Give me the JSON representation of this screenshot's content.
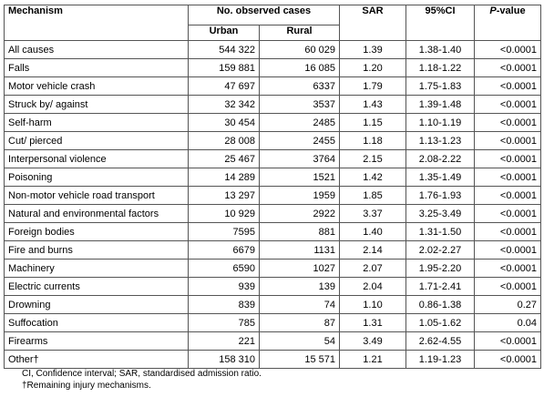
{
  "header": {
    "mechanism": "Mechanism",
    "observed": "No. observed cases",
    "urban": "Urban",
    "rural": "Rural",
    "sar": "SAR",
    "ci": "95%CI",
    "p_italic": "P",
    "p_rest": "-value"
  },
  "table": {
    "rows": [
      {
        "mechanism": "All causes",
        "urban": "544 322",
        "rural": "60 029",
        "sar": "1.39",
        "ci": "1.38-1.40",
        "p": "<0.0001"
      },
      {
        "mechanism": "Falls",
        "urban": "159 881",
        "rural": "16 085",
        "sar": "1.20",
        "ci": "1.18-1.22",
        "p": "<0.0001"
      },
      {
        "mechanism": "Motor vehicle crash",
        "urban": "47 697",
        "rural": "6337",
        "sar": "1.79",
        "ci": "1.75-1.83",
        "p": "<0.0001"
      },
      {
        "mechanism": "Struck by/ against",
        "urban": "32 342",
        "rural": "3537",
        "sar": "1.43",
        "ci": "1.39-1.48",
        "p": "<0.0001"
      },
      {
        "mechanism": "Self-harm",
        "urban": "30 454",
        "rural": "2485",
        "sar": "1.15",
        "ci": "1.10-1.19",
        "p": "<0.0001"
      },
      {
        "mechanism": "Cut/ pierced",
        "urban": "28 008",
        "rural": "2455",
        "sar": "1.18",
        "ci": "1.13-1.23",
        "p": "<0.0001"
      },
      {
        "mechanism": "Interpersonal violence",
        "urban": "25 467",
        "rural": "3764",
        "sar": "2.15",
        "ci": "2.08-2.22",
        "p": "<0.0001"
      },
      {
        "mechanism": "Poisoning",
        "urban": "14 289",
        "rural": "1521",
        "sar": "1.42",
        "ci": "1.35-1.49",
        "p": "<0.0001"
      },
      {
        "mechanism": "Non-motor vehicle road transport",
        "urban": "13 297",
        "rural": "1959",
        "sar": "1.85",
        "ci": "1.76-1.93",
        "p": "<0.0001"
      },
      {
        "mechanism": "Natural and environmental factors",
        "urban": "10 929",
        "rural": "2922",
        "sar": "3.37",
        "ci": "3.25-3.49",
        "p": "<0.0001"
      },
      {
        "mechanism": "Foreign bodies",
        "urban": "7595",
        "rural": "881",
        "sar": "1.40",
        "ci": "1.31-1.50",
        "p": "<0.0001"
      },
      {
        "mechanism": "Fire and burns",
        "urban": "6679",
        "rural": "1131",
        "sar": "2.14",
        "ci": "2.02-2.27",
        "p": "<0.0001"
      },
      {
        "mechanism": "Machinery",
        "urban": "6590",
        "rural": "1027",
        "sar": "2.07",
        "ci": "1.95-2.20",
        "p": "<0.0001"
      },
      {
        "mechanism": "Electric currents",
        "urban": "939",
        "rural": "139",
        "sar": "2.04",
        "ci": "1.71-2.41",
        "p": "<0.0001"
      },
      {
        "mechanism": "Drowning",
        "urban": "839",
        "rural": "74",
        "sar": "1.10",
        "ci": "0.86-1.38",
        "p": "0.27"
      },
      {
        "mechanism": "Suffocation",
        "urban": "785",
        "rural": "87",
        "sar": "1.31",
        "ci": "1.05-1.62",
        "p": "0.04"
      },
      {
        "mechanism": "Firearms",
        "urban": "221",
        "rural": "54",
        "sar": "3.49",
        "ci": "2.62-4.55",
        "p": "<0.0001"
      },
      {
        "mechanism": "Other†",
        "urban": "158 310",
        "rural": "15 571",
        "sar": "1.21",
        "ci": "1.19-1.23",
        "p": "<0.0001"
      }
    ]
  },
  "footnotes": [
    "CI, Confidence interval; SAR, standardised admission ratio.",
    "†Remaining injury mechanisms."
  ]
}
